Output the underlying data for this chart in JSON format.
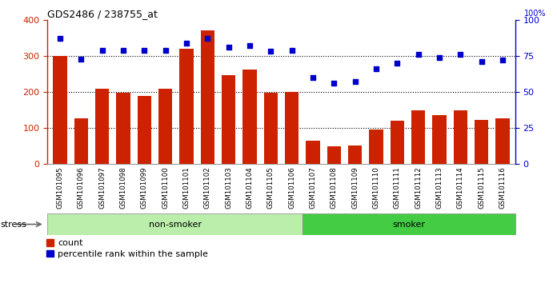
{
  "title": "GDS2486 / 238755_at",
  "samples": [
    "GSM101095",
    "GSM101096",
    "GSM101097",
    "GSM101098",
    "GSM101099",
    "GSM101100",
    "GSM101101",
    "GSM101102",
    "GSM101103",
    "GSM101104",
    "GSM101105",
    "GSM101106",
    "GSM101107",
    "GSM101108",
    "GSM101109",
    "GSM101110",
    "GSM101111",
    "GSM101112",
    "GSM101113",
    "GSM101114",
    "GSM101115",
    "GSM101116"
  ],
  "counts": [
    300,
    128,
    210,
    197,
    188,
    208,
    320,
    370,
    247,
    262,
    197,
    200,
    65,
    50,
    52,
    95,
    120,
    150,
    135,
    150,
    122,
    128
  ],
  "percentile_ranks": [
    87,
    73,
    79,
    79,
    79,
    79,
    84,
    87,
    81,
    82,
    78,
    79,
    60,
    56,
    57,
    66,
    70,
    76,
    74,
    76,
    71,
    72
  ],
  "ns_count": 12,
  "smoker_count": 10,
  "bar_color": "#cc2200",
  "dot_color": "#0000cc",
  "nonsmoker_color": "#bbeeaa",
  "smoker_color": "#44cc44",
  "xtick_bg_color": "#cccccc",
  "ylim_left": [
    0,
    400
  ],
  "ylim_right": [
    0,
    100
  ],
  "yticks_left": [
    0,
    100,
    200,
    300,
    400
  ],
  "yticks_right": [
    0,
    25,
    50,
    75,
    100
  ],
  "grid_lines": [
    100,
    200,
    300
  ],
  "legend_count": "count",
  "legend_pct": "percentile rank within the sample"
}
